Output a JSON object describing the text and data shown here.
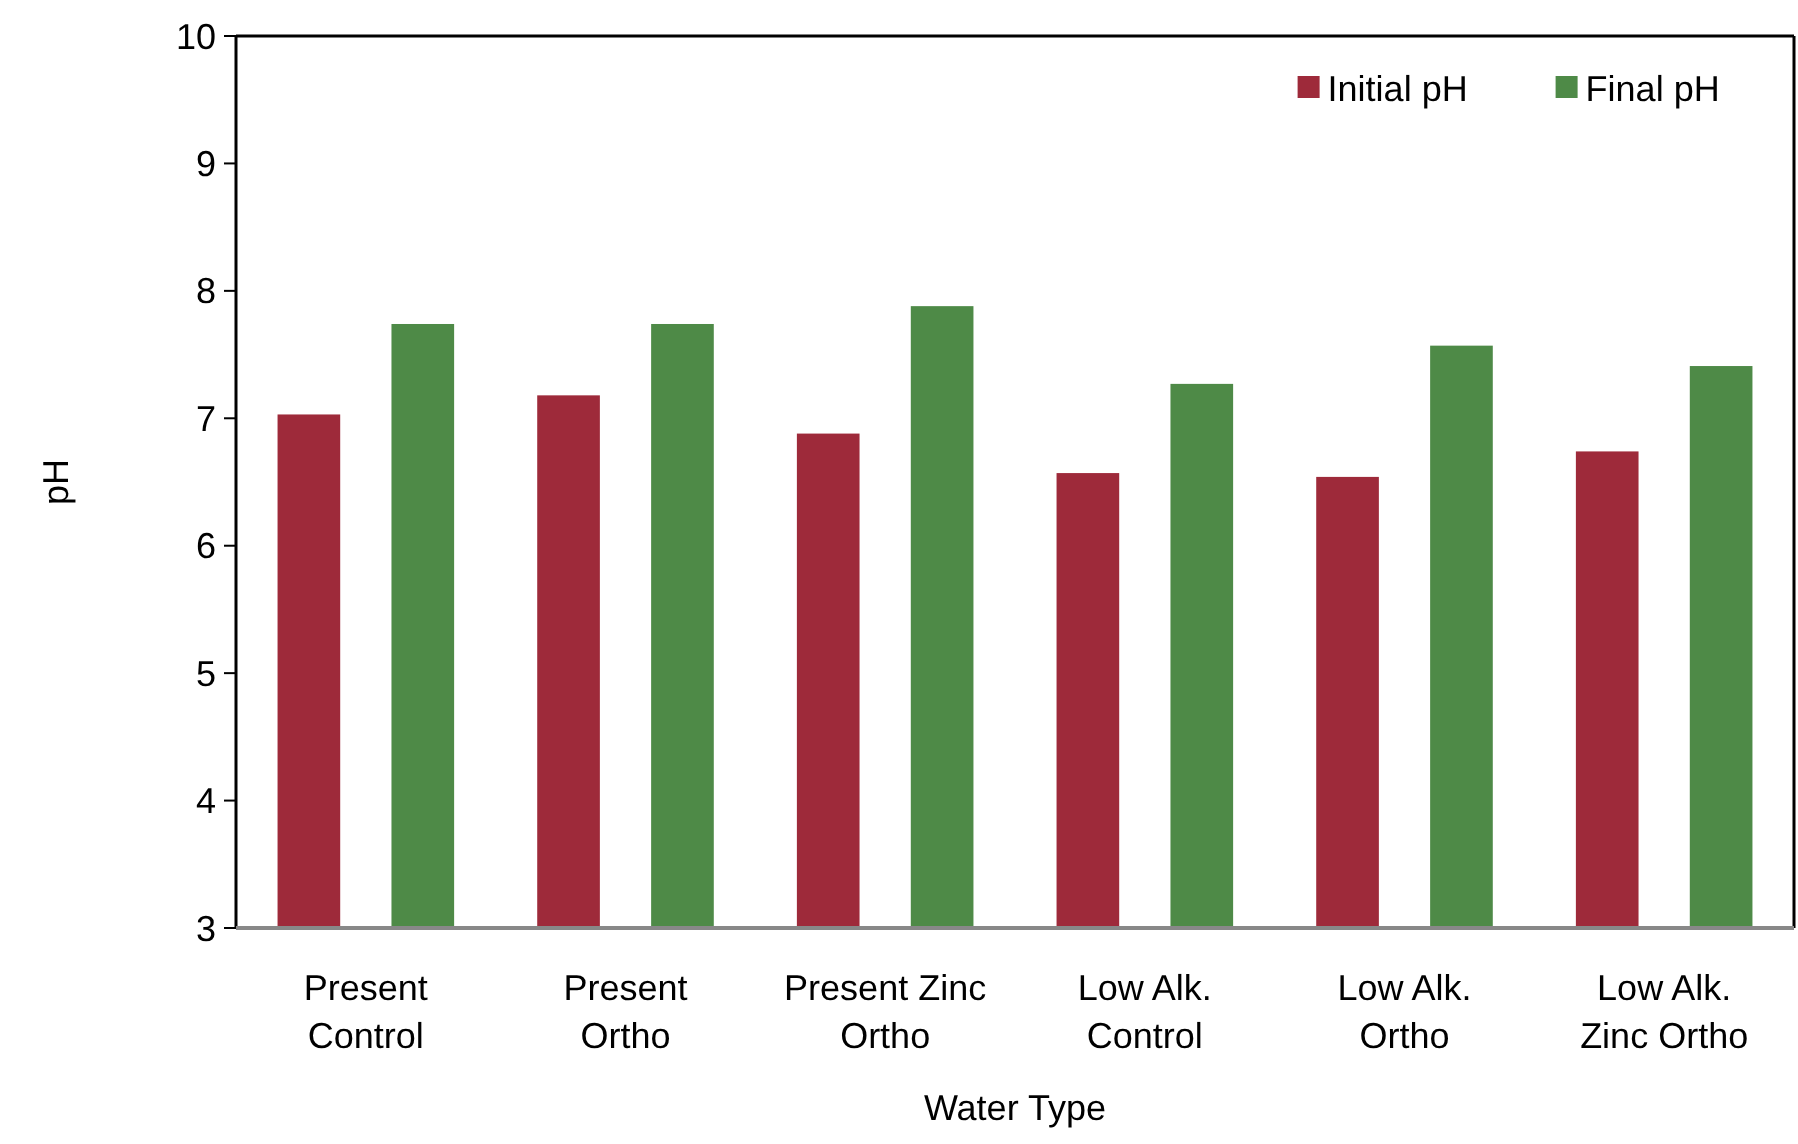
{
  "chart_data": {
    "type": "bar",
    "xlabel": "Water Type",
    "ylabel": "pH",
    "categories": [
      "Present Control",
      "Present Ortho",
      "Present Zinc Ortho",
      "Low Alk. Control",
      "Low Alk. Ortho",
      "Low Alk. Zinc Ortho"
    ],
    "series": [
      {
        "name": "Initial pH",
        "color": "#9e2a3a",
        "values": [
          7.03,
          7.18,
          6.88,
          6.57,
          6.54,
          6.74
        ]
      },
      {
        "name": "Final pH",
        "color": "#4e8a47",
        "values": [
          7.74,
          7.74,
          7.88,
          7.27,
          7.57,
          7.41
        ]
      }
    ],
    "ylim": [
      3,
      10
    ],
    "yticks": [
      3,
      4,
      5,
      6,
      7,
      8,
      9,
      10
    ],
    "grid": false,
    "legend": "top right"
  }
}
